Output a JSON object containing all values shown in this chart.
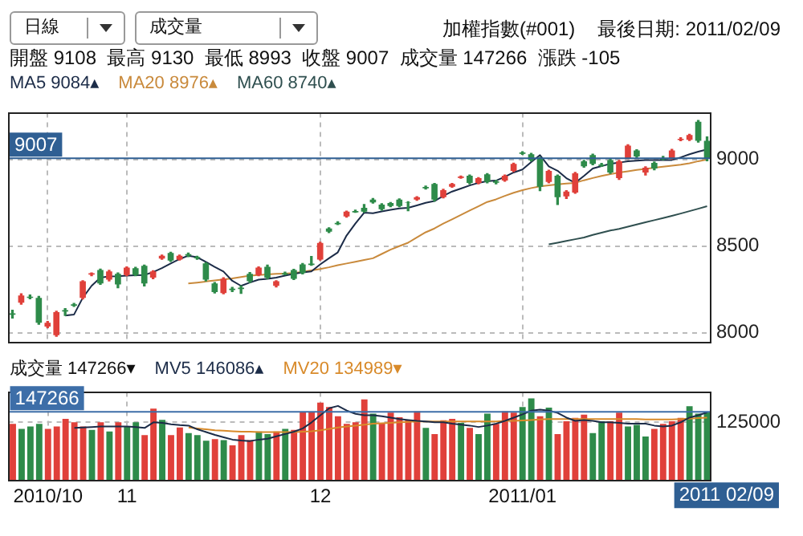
{
  "chart_data": [
    {
      "type": "candlestick",
      "title": "加權指數(#001)",
      "subtitle": "開盤 9108  最高 9130  最低 8993  收盤 9007  成交量 147266  漲跌 -105",
      "annotations": [
        "日線",
        "成交量",
        "最後日期: 2011/02/09"
      ],
      "categories": [
        null,
        null,
        null,
        null,
        null,
        null,
        null,
        null,
        null,
        null,
        null,
        null,
        null,
        null,
        null,
        null,
        null,
        null,
        null,
        null,
        null,
        null,
        null,
        null,
        null,
        null,
        null,
        null,
        null,
        null,
        null,
        null,
        null,
        null,
        null,
        null,
        null,
        null,
        null,
        null,
        null,
        null,
        null,
        null,
        null,
        null,
        null,
        null,
        null,
        null,
        null,
        null,
        null,
        null,
        null,
        null,
        null,
        null,
        null,
        null,
        null,
        null,
        null,
        null,
        null,
        null,
        null,
        null,
        null,
        null,
        null,
        null,
        null,
        null,
        null,
        null,
        null,
        null,
        null,
        null
      ],
      "ohlc": [
        [
          8112,
          8130,
          8085,
          8104
        ],
        [
          8174,
          8225,
          8165,
          8216
        ],
        [
          8209,
          8218,
          8196,
          8201
        ],
        [
          8202,
          8210,
          8050,
          8058
        ],
        [
          8036,
          8065,
          8030,
          8058
        ],
        [
          7986,
          8125,
          7980,
          8119
        ],
        [
          8131,
          8140,
          8100,
          8123
        ],
        [
          8164,
          8170,
          8152,
          8156
        ],
        [
          8202,
          8300,
          8195,
          8298
        ],
        [
          8336,
          8345,
          8330,
          8344
        ],
        [
          8362,
          8368,
          8280,
          8285
        ],
        [
          8307,
          8360,
          8300,
          8354
        ],
        [
          8340,
          8345,
          8260,
          8279
        ],
        [
          8334,
          8380,
          8330,
          8376
        ],
        [
          8373,
          8378,
          8330,
          8334
        ],
        [
          8387,
          8390,
          8270,
          8285
        ],
        [
          8318,
          8358,
          8312,
          8354
        ],
        [
          8428,
          8448,
          8425,
          8445
        ],
        [
          8461,
          8465,
          8412,
          8417
        ],
        [
          8423,
          8448,
          8420,
          8445
        ],
        [
          8454,
          8460,
          8440,
          8446
        ],
        [
          8438,
          8442,
          8425,
          8430
        ],
        [
          8400,
          8405,
          8300,
          8307
        ],
        [
          8285,
          8290,
          8230,
          8235
        ],
        [
          8229,
          8318,
          8225,
          8312
        ],
        [
          8255,
          8262,
          8238,
          8247
        ],
        [
          8261,
          8270,
          8228,
          8253
        ],
        [
          8340,
          8348,
          8290,
          8298
        ],
        [
          8334,
          8380,
          8330,
          8376
        ],
        [
          8381,
          8390,
          8312,
          8318
        ],
        [
          8271,
          8300,
          8265,
          8298
        ],
        [
          8344,
          8350,
          8335,
          8336
        ],
        [
          8362,
          8366,
          8308,
          8312
        ],
        [
          8395,
          8400,
          8340,
          8345
        ],
        [
          8399,
          8440,
          8390,
          8391
        ],
        [
          8423,
          8522,
          8420,
          8519
        ],
        [
          8602,
          8606,
          8578,
          8583
        ],
        [
          8634,
          8640,
          8625,
          8626
        ],
        [
          8671,
          8702,
          8668,
          8699
        ],
        [
          8703,
          8708,
          8695,
          8695
        ],
        [
          8721,
          8740,
          8696,
          8699
        ],
        [
          8768,
          8775,
          8748,
          8752
        ],
        [
          8740,
          8745,
          8708,
          8713
        ],
        [
          8749,
          8752,
          8728,
          8732
        ],
        [
          8768,
          8772,
          8728,
          8732
        ],
        [
          8751,
          8756,
          8705,
          8749
        ],
        [
          8768,
          8785,
          8765,
          8782
        ],
        [
          8841,
          8847,
          8830,
          8833
        ],
        [
          8859,
          8862,
          8760,
          8768
        ],
        [
          8782,
          8828,
          8778,
          8823
        ],
        [
          8843,
          8862,
          8840,
          8859
        ],
        [
          8894,
          8904,
          8892,
          8902
        ],
        [
          8906,
          8910,
          8860,
          8865
        ],
        [
          8865,
          8895,
          8860,
          8892
        ],
        [
          8914,
          8918,
          8865,
          8870
        ],
        [
          8874,
          8880,
          8860,
          8866
        ],
        [
          8878,
          8910,
          8875,
          8906
        ],
        [
          8934,
          8978,
          8930,
          8975
        ],
        [
          9040,
          9044,
          9030,
          9032
        ],
        [
          9030,
          9035,
          8992,
          8997
        ],
        [
          9008,
          9012,
          8820,
          8843
        ],
        [
          8870,
          8938,
          8865,
          8934
        ],
        [
          8906,
          8910,
          8740,
          8782
        ],
        [
          8787,
          8820,
          8775,
          8815
        ],
        [
          8809,
          8925,
          8805,
          8920
        ],
        [
          8989,
          8995,
          8955,
          8961
        ],
        [
          9025,
          9030,
          8970,
          8975
        ],
        [
          8971,
          8977,
          8960,
          8963
        ],
        [
          8997,
          9002,
          8920,
          8925
        ],
        [
          8892,
          8995,
          8885,
          8989
        ],
        [
          9008,
          9085,
          9005,
          9080
        ],
        [
          9052,
          9056,
          9012,
          9017
        ],
        [
          8925,
          8958,
          8910,
          8953
        ],
        [
          8980,
          8985,
          8940,
          8948
        ],
        [
          9007,
          9018,
          8998,
          8999
        ],
        [
          9008,
          9058,
          9003,
          9052
        ],
        [
          9112,
          9125,
          9108,
          9119
        ],
        [
          9113,
          9145,
          9110,
          9141
        ],
        [
          9218,
          9225,
          9100,
          9108
        ],
        [
          9108,
          9130,
          8993,
          9007
        ]
      ],
      "colors": [
        "#2e8b4a",
        "#e0403a",
        "#2e8b4a",
        "#2e8b4a",
        "#e0403a",
        "#e0403a",
        "#2e8b4a",
        "#2e8b4a",
        "#e0403a",
        "#e0403a",
        "#2e8b4a",
        "#e0403a",
        "#2e8b4a",
        "#e0403a",
        "#2e8b4a",
        "#2e8b4a",
        "#e0403a",
        "#e0403a",
        "#2e8b4a",
        "#e0403a",
        "#2e8b4a",
        "#2e8b4a",
        "#2e8b4a",
        "#2e8b4a",
        "#e0403a",
        "#2e8b4a",
        "#2e8b4a",
        "#2e8b4a",
        "#e0403a",
        "#2e8b4a",
        "#e0403a",
        "#2e8b4a",
        "#2e8b4a",
        "#2e8b4a",
        "#2e8b4a",
        "#e0403a",
        "#2e8b4a",
        "#2e8b4a",
        "#e0403a",
        "#2e8b4a",
        "#2e8b4a",
        "#2e8b4a",
        "#2e8b4a",
        "#2e8b4a",
        "#2e8b4a",
        "#2e8b4a",
        "#e0403a",
        "#2e8b4a",
        "#2e8b4a",
        "#e0403a",
        "#e0403a",
        "#e0403a",
        "#2e8b4a",
        "#e0403a",
        "#2e8b4a",
        "#2e8b4a",
        "#e0403a",
        "#e0403a",
        "#2e8b4a",
        "#2e8b4a",
        "#2e8b4a",
        "#e0403a",
        "#2e8b4a",
        "#e0403a",
        "#e0403a",
        "#2e8b4a",
        "#2e8b4a",
        "#2e8b4a",
        "#2e8b4a",
        "#e0403a",
        "#e0403a",
        "#2e8b4a",
        "#e0403a",
        "#2e8b4a",
        "#2e8b4a",
        "#e0403a",
        "#e0403a",
        "#e0403a",
        "#2e8b4a",
        "#2e8b4a"
      ],
      "series": [
        {
          "name": "MA5 9084▴",
          "type": "line",
          "color": "#1c2c48",
          "values": [
            null,
            null,
            null,
            null,
            null,
            null,
            8100,
            8105,
            8202,
            8271,
            8318,
            8325,
            8326,
            8330,
            8332,
            8334,
            8350,
            8373,
            8400,
            8425,
            8445,
            8436,
            8409,
            8380,
            8354,
            8300,
            8271,
            8290,
            8307,
            8312,
            8318,
            8330,
            8340,
            8348,
            8354,
            8395,
            8430,
            8464,
            8561,
            8630,
            8693,
            8690,
            8700,
            8710,
            8718,
            8721,
            8735,
            8750,
            8760,
            8790,
            8815,
            8832,
            8850,
            8865,
            8875,
            8878,
            8900,
            8925,
            8942,
            8985,
            9025,
            8960,
            8935,
            8892,
            8865,
            8905,
            8948,
            8962,
            8975,
            8982,
            8989,
            8993,
            8997,
            8997,
            8997,
            8997,
            9012,
            9030,
            9045,
            9058
          ]
        },
        {
          "name": "MA20 8976▴",
          "type": "line",
          "color": "#c98a3c",
          "values": [
            null,
            null,
            null,
            null,
            null,
            null,
            null,
            null,
            null,
            null,
            null,
            null,
            null,
            null,
            null,
            null,
            null,
            null,
            null,
            null,
            8285,
            8290,
            8296,
            8302,
            8308,
            8314,
            8322,
            8330,
            8334,
            8337,
            8340,
            8342,
            8345,
            8352,
            8360,
            8368,
            8378,
            8390,
            8400,
            8410,
            8420,
            8430,
            8455,
            8480,
            8500,
            8520,
            8550,
            8580,
            8602,
            8630,
            8655,
            8680,
            8705,
            8730,
            8755,
            8770,
            8790,
            8808,
            8823,
            8835,
            8845,
            8851,
            8856,
            8861,
            8865,
            8880,
            8893,
            8905,
            8915,
            8925,
            8932,
            8940,
            8946,
            8952,
            8958,
            8964,
            8970,
            8978,
            8990,
            9000
          ]
        },
        {
          "name": "MA60 8740▴",
          "type": "line",
          "color": "#2f4f4f",
          "values": [
            null,
            null,
            null,
            null,
            null,
            null,
            null,
            null,
            null,
            null,
            null,
            null,
            null,
            null,
            null,
            null,
            null,
            null,
            null,
            null,
            null,
            null,
            null,
            null,
            null,
            null,
            null,
            null,
            null,
            null,
            null,
            null,
            null,
            null,
            null,
            null,
            null,
            null,
            null,
            null,
            null,
            null,
            null,
            null,
            null,
            null,
            null,
            null,
            null,
            null,
            null,
            null,
            null,
            null,
            null,
            null,
            null,
            null,
            null,
            null,
            null,
            8510,
            8520,
            8530,
            8540,
            8550,
            8565,
            8578,
            8590,
            8600,
            8612,
            8625,
            8638,
            8650,
            8662,
            8675,
            8688,
            8702,
            8716,
            8730
          ]
        }
      ],
      "ylim": [
        7950,
        9270
      ],
      "yticks": [
        8000,
        8500,
        9000
      ],
      "ref_lines": [
        {
          "axis": "y",
          "value": 9007,
          "label": "9007",
          "color": "#2f5f93"
        }
      ],
      "grid": true,
      "legend": "top left",
      "tick_labels": "y"
    },
    {
      "type": "bar",
      "annotations": [
        "2011 02/09"
      ],
      "categories": [
        null,
        null,
        null,
        null,
        "2010/10",
        null,
        null,
        null,
        null,
        null,
        null,
        null,
        null,
        "11",
        null,
        null,
        null,
        null,
        null,
        null,
        null,
        null,
        null,
        null,
        null,
        null,
        null,
        null,
        null,
        null,
        null,
        null,
        null,
        null,
        null,
        "12",
        null,
        null,
        null,
        null,
        null,
        null,
        null,
        null,
        null,
        null,
        null,
        null,
        null,
        null,
        null,
        null,
        null,
        null,
        null,
        null,
        null,
        null,
        "2011/01",
        null,
        null,
        null,
        null,
        null,
        null,
        null,
        null,
        null,
        null,
        null,
        null,
        null,
        null,
        null,
        null,
        null,
        null,
        null,
        null,
        null
      ],
      "series": [
        {
          "name": "成交量 147266▾",
          "type": "bar",
          "colors": [
            "#e0403a",
            "#2e8b4a",
            "#2e8b4a",
            "#2e8b4a",
            "#e0403a",
            "#e0403a",
            "#e0403a",
            "#e0403a",
            "#e0403a",
            "#2e8b4a",
            "#e0403a",
            "#2e8b4a",
            "#e0403a",
            "#2e8b4a",
            "#2e8b4a",
            "#e0403a",
            "#e0403a",
            "#2e8b4a",
            "#e0403a",
            "#e0403a",
            "#2e8b4a",
            "#2e8b4a",
            "#2e8b4a",
            "#e0403a",
            "#2e8b4a",
            "#e0403a",
            "#e0403a",
            "#e0403a",
            "#2e8b4a",
            "#2e8b4a",
            "#e0403a",
            "#2e8b4a",
            "#e0403a",
            "#e0403a",
            "#e0403a",
            "#e0403a",
            "#e0403a",
            "#e0403a",
            "#e0403a",
            "#e0403a",
            "#e0403a",
            "#2e8b4a",
            "#e0403a",
            "#e0403a",
            "#e0403a",
            "#e0403a",
            "#e0403a",
            "#2e8b4a",
            "#e0403a",
            "#e0403a",
            "#e0403a",
            "#2e8b4a",
            "#e0403a",
            "#2e8b4a",
            "#2e8b4a",
            "#e0403a",
            "#e0403a",
            "#e0403a",
            "#2e8b4a",
            "#2e8b4a",
            "#e0403a",
            "#2e8b4a",
            "#e0403a",
            "#e0403a",
            "#e0403a",
            "#e0403a",
            "#2e8b4a",
            "#2e8b4a",
            "#e0403a",
            "#e0403a",
            "#2e8b4a",
            "#2e8b4a",
            "#2e8b4a",
            "#e0403a",
            "#e0403a",
            "#e0403a",
            "#e0403a",
            "#2e8b4a",
            "#2e8b4a",
            "#2e8b4a"
          ],
          "values": [
            121600,
            110800,
            116200,
            121600,
            110800,
            116200,
            132500,
            124900,
            116200,
            108600,
            124900,
            105300,
            124900,
            116200,
            124900,
            97700,
            154200,
            130300,
            97700,
            114000,
            102100,
            97700,
            85800,
            89100,
            86900,
            76000,
            97700,
            86900,
            105300,
            99900,
            105300,
            110800,
            108600,
            146600,
            146600,
            167200,
            157500,
            137900,
            121600,
            124900,
            173800,
            143400,
            123800,
            145500,
            135800,
            130300,
            148800,
            112900,
            99900,
            129200,
            132500,
            123800,
            112900,
            99900,
            143400,
            121600,
            148800,
            145500,
            157500,
            175900,
            137900,
            156400,
            99900,
            127100,
            134700,
            141200,
            102100,
            127100,
            127100,
            145500,
            116200,
            119500,
            94500,
            110800,
            121600,
            127100,
            134700,
            159600,
            143400,
            147266
          ]
        },
        {
          "name": "MV5 146086▴",
          "type": "line",
          "color": "#1c2c48",
          "values": [
            null,
            null,
            null,
            null,
            null,
            null,
            null,
            113000,
            114000,
            115000,
            116000,
            116000,
            116000,
            116000,
            115000,
            113000,
            125000,
            124000,
            121000,
            119000,
            118000,
            110000,
            104000,
            98000,
            93000,
            88000,
            86000,
            85000,
            88000,
            90000,
            95000,
            100000,
            105000,
            112000,
            125000,
            140000,
            155000,
            160000,
            150000,
            143000,
            140000,
            140000,
            138000,
            135000,
            132000,
            130000,
            128000,
            127000,
            125000,
            125000,
            122000,
            120000,
            118000,
            115000,
            118000,
            122000,
            128000,
            135000,
            142000,
            150000,
            152000,
            150000,
            145000,
            135000,
            128000,
            130000,
            128000,
            125000,
            125000,
            124000,
            122000,
            122000,
            122000,
            118000,
            116000,
            118000,
            125000,
            135000,
            140000,
            146086
          ]
        },
        {
          "name": "MV20 134989▾",
          "type": "line",
          "color": "#d88a2a",
          "values": [
            null,
            null,
            null,
            null,
            null,
            null,
            null,
            null,
            null,
            null,
            null,
            null,
            null,
            null,
            null,
            null,
            null,
            null,
            null,
            null,
            114000,
            112000,
            110000,
            108000,
            107000,
            106000,
            105000,
            105000,
            104000,
            104000,
            104000,
            104000,
            104000,
            105000,
            106000,
            108000,
            111000,
            114000,
            116000,
            118000,
            120000,
            122000,
            123000,
            124000,
            125000,
            126000,
            127000,
            127000,
            127000,
            127000,
            127000,
            127000,
            127000,
            127000,
            127000,
            127000,
            128000,
            128000,
            129000,
            130000,
            131000,
            132000,
            132000,
            132000,
            132000,
            132000,
            132000,
            132000,
            132000,
            132000,
            132000,
            132000,
            131000,
            131000,
            131000,
            131000,
            132000,
            133000,
            134000,
            134989
          ]
        }
      ],
      "ylim": [
        0,
        190000
      ],
      "yticks": [
        125000
      ],
      "ref_lines": [
        {
          "axis": "y",
          "value": 147266,
          "label": "147266",
          "color": "#3d6ea8"
        }
      ],
      "grid": true,
      "legend": "top left"
    }
  ]
}
